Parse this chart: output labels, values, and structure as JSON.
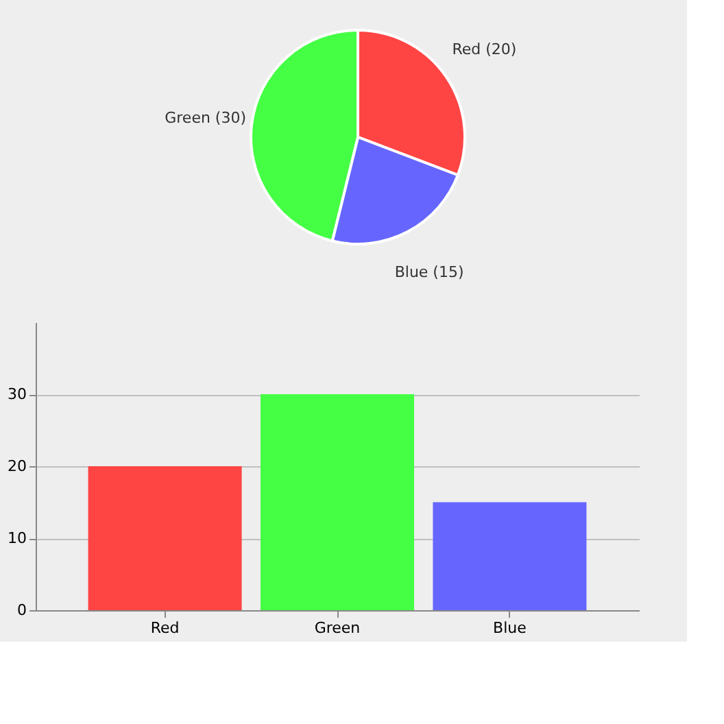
{
  "chart_data": [
    {
      "type": "pie",
      "categories": [
        "Red (20)",
        "Blue (15)",
        "Green (30)"
      ],
      "values": [
        20,
        15,
        30
      ],
      "colors": [
        "#ff4444",
        "#6666ff",
        "#44ff44"
      ],
      "legend": false
    },
    {
      "type": "bar",
      "categories": [
        "Red",
        "Green",
        "Blue"
      ],
      "values": [
        20,
        30,
        15
      ],
      "colors": [
        "#ff4444",
        "#44ff44",
        "#6666ff"
      ],
      "ylim": [
        0,
        40
      ],
      "yticks": [
        0,
        10,
        20,
        30
      ],
      "grid": "y",
      "legend": false
    }
  ]
}
